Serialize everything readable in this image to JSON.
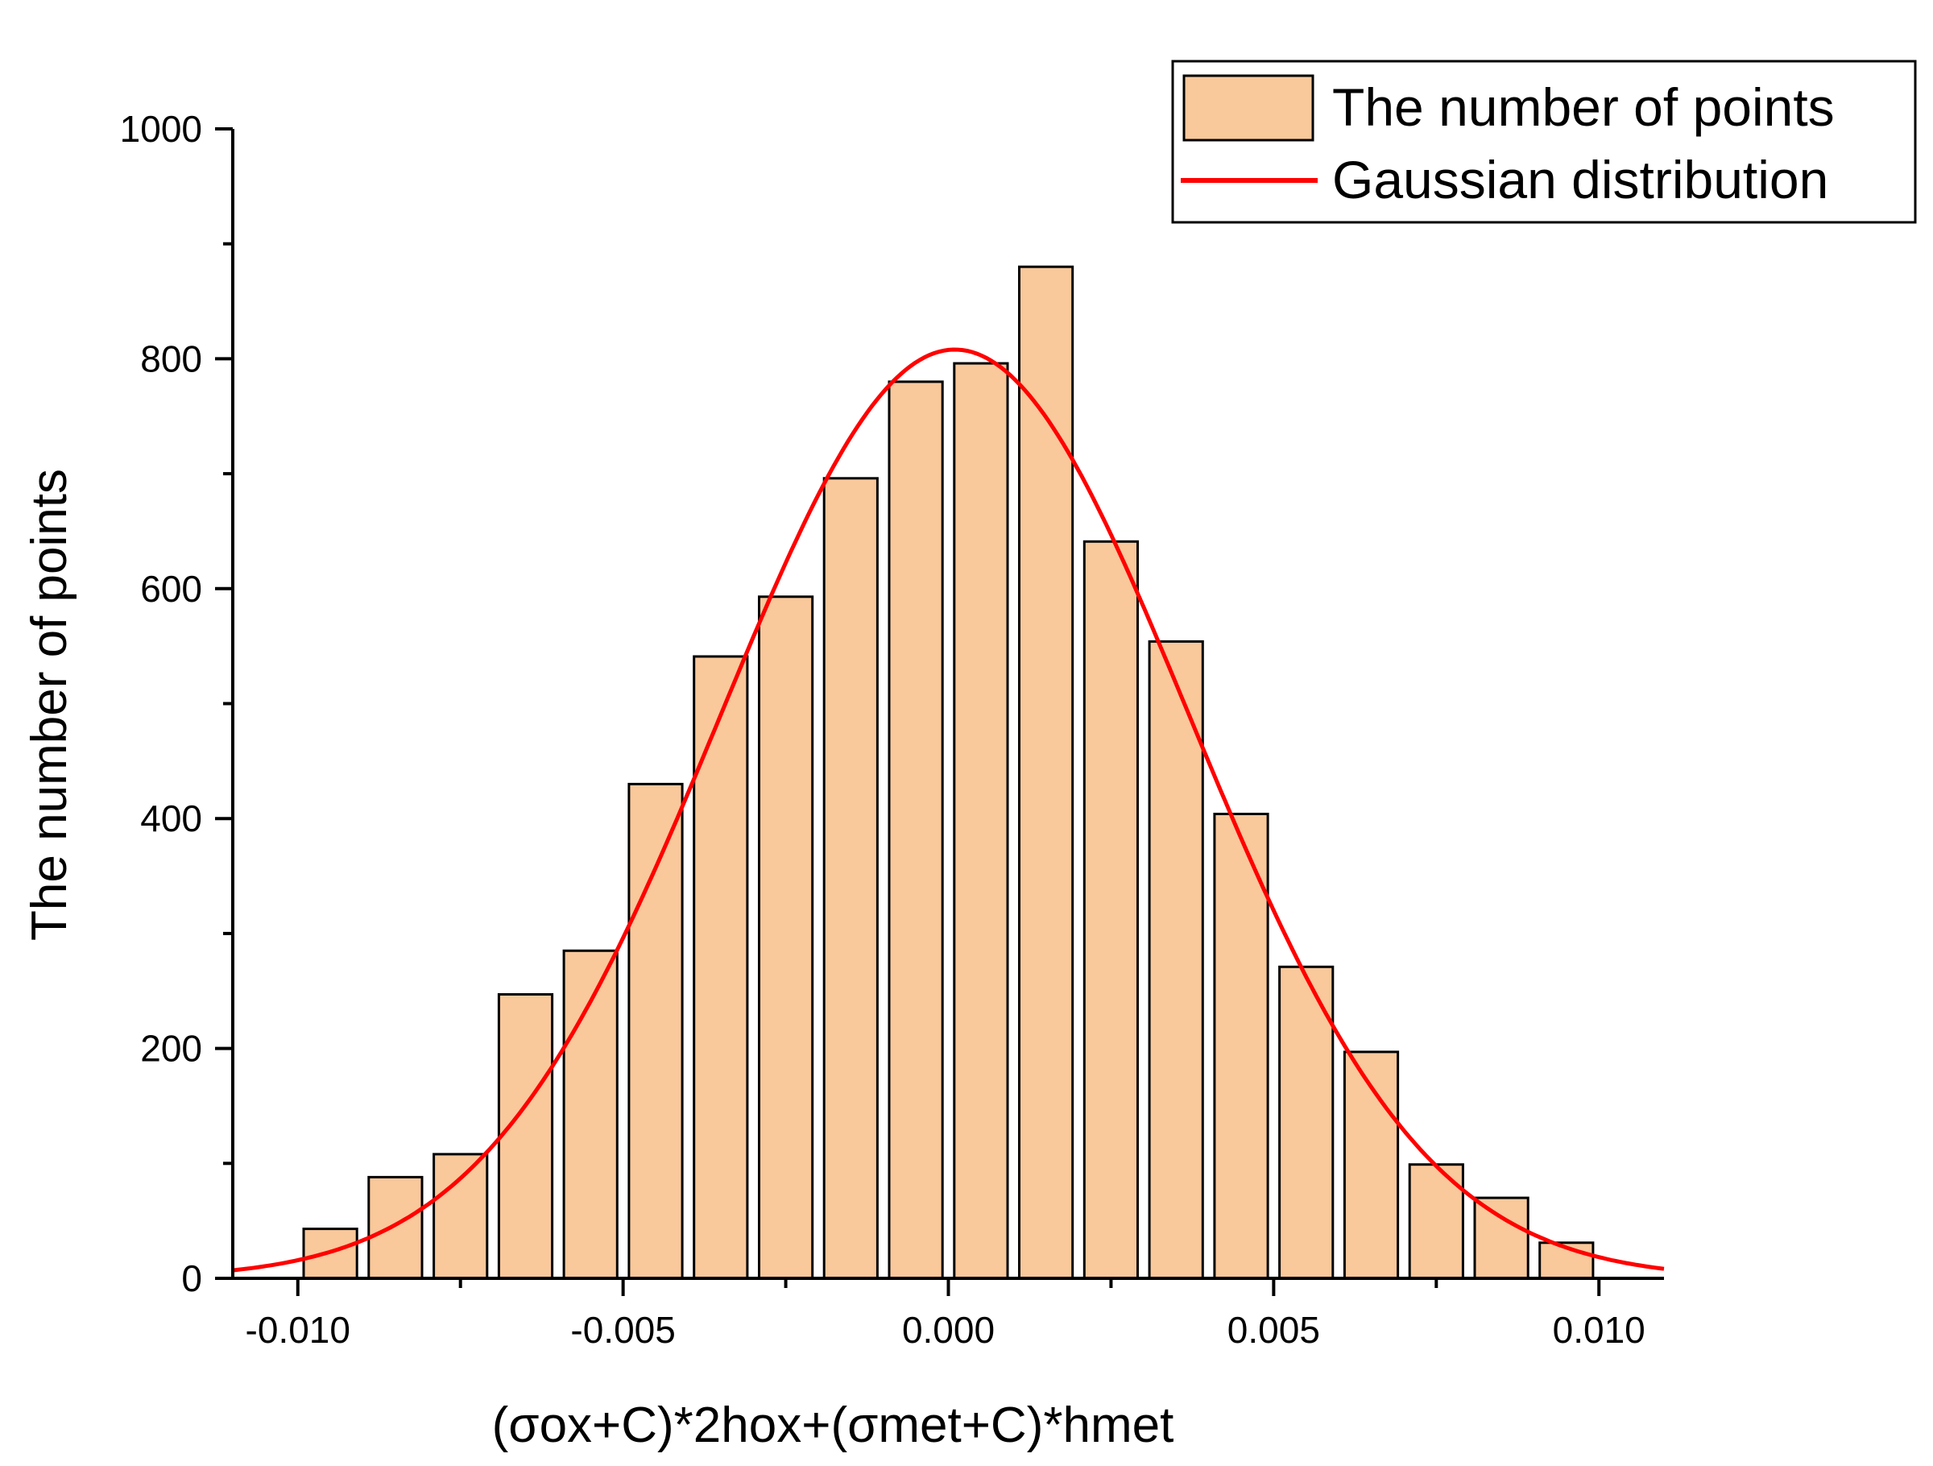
{
  "chart_data": {
    "type": "bar",
    "title": "",
    "xlabel": "(σox+C)*2hox+(σmet+C)*hmet",
    "ylabel": "The number of points",
    "xlim": [
      -0.011,
      0.011
    ],
    "ylim": [
      0,
      1000
    ],
    "x_ticks": [
      -0.01,
      -0.005,
      0.0,
      0.005,
      0.01
    ],
    "x_tick_labels": [
      "-0.010",
      "-0.005",
      "0.000",
      "0.005",
      "0.010"
    ],
    "y_ticks": [
      0,
      200,
      400,
      600,
      800,
      1000
    ],
    "y_tick_labels": [
      "0",
      "200",
      "400",
      "600",
      "800",
      "1000"
    ],
    "bin_width": 0.001,
    "series": [
      {
        "name": "The number of points",
        "kind": "bar",
        "color": "#F9C89B",
        "edge_color": "#000000",
        "x": [
          -0.0095,
          -0.0085,
          -0.0075,
          -0.0065,
          -0.0055,
          -0.0045,
          -0.0035,
          -0.0025,
          -0.0015,
          -0.0005,
          0.0005,
          0.0015,
          0.0025,
          0.0035,
          0.0045,
          0.0055,
          0.0065,
          0.0075,
          0.0085,
          0.0095
        ],
        "values": [
          43,
          88,
          108,
          247,
          285,
          430,
          541,
          593,
          696,
          780,
          796,
          880,
          641,
          554,
          404,
          271,
          197,
          99,
          70,
          31
        ]
      },
      {
        "name": "Gaussian distribution",
        "kind": "line",
        "color": "#FF0000",
        "peak": 808,
        "center": 0.0001,
        "sigma": 0.0036,
        "x_range": [
          -0.011,
          0.011
        ]
      }
    ],
    "legend": {
      "position": "top-right",
      "entries": [
        "The number of points",
        "Gaussian distribution"
      ]
    }
  }
}
